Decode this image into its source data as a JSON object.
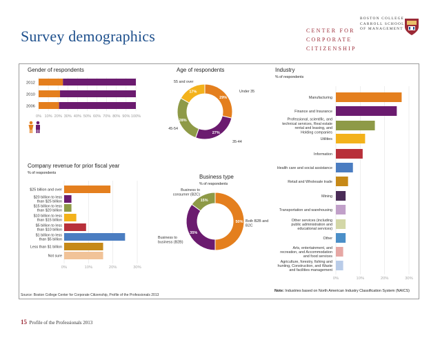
{
  "header": {
    "title": "Survey demographics",
    "brand_line1": "CENTER FOR",
    "brand_line2": "CORPORATE CITIZENSHIP",
    "bc_line1": "BOSTON COLLEGE",
    "bc_line2": "CARROLL SCHOOL",
    "bc_line3": "OF MANAGEMENT"
  },
  "footer": {
    "page_number": "15",
    "doc_title": "Profile of the Professionals 2013",
    "source": "Source: Boston College Center for Corporate Citizenship, Profile of the Professionals 2013",
    "note_label": "Note:",
    "note_text": "Industries based on North American Industry Classification System (NAICS)"
  },
  "colors": {
    "orange": "#e47f1e",
    "purple": "#6b1b6f",
    "olive": "#8e9a47",
    "gold": "#f3b21b",
    "red": "#b8303a",
    "blue": "#4b7dc1",
    "tan": "#f1c398",
    "lavender": "#c1a0c9",
    "sage": "#d3d7a7",
    "rose": "#e6a7a4",
    "lightblue": "#b9cce8",
    "accent": "#9b2a36",
    "navy": "#1d4f8c"
  },
  "chart_data": [
    {
      "type": "bar",
      "title": "Gender of respondents",
      "orientation": "horizontal-stacked",
      "categories": [
        "2012",
        "2010",
        "2006"
      ],
      "series": [
        {
          "color": "#e47f1e",
          "values": [
            25,
            22,
            21
          ]
        },
        {
          "color": "#6b1b6f",
          "values": [
            75,
            78,
            79
          ]
        }
      ],
      "ticks": [
        "0%",
        "10%",
        "20%",
        "30%",
        "40%",
        "50%",
        "60%",
        "70%",
        "80%",
        "90%",
        "100%"
      ],
      "xlim": [
        0,
        100
      ]
    },
    {
      "type": "pie",
      "title": "Age of respondents",
      "donut": true,
      "slices": [
        {
          "label": "Under 35",
          "value": 29,
          "display": "29%",
          "color": "#e47f1e"
        },
        {
          "label": "35-44",
          "value": 27,
          "display": "27%",
          "color": "#6b1b6f"
        },
        {
          "label": "45-54",
          "value": 28,
          "display": "28%",
          "color": "#8e9a47"
        },
        {
          "label": "55 and over",
          "value": 17,
          "display": "17%",
          "color": "#f3b21b"
        }
      ]
    },
    {
      "type": "bar",
      "title": "Industry",
      "subtitle": "% of respondents",
      "orientation": "horizontal",
      "categories": [
        "Manufacturing",
        "Finance and Insurance",
        "Professional, scientific, and technical services, Real estate rental and leasing, and Holding companies",
        "Utilities",
        "Information",
        "Health care and social assistance",
        "Retail and Wholesale trade",
        "Mining",
        "Transportation and warehousing",
        "Other services (including public administration and educational services)",
        "Other",
        "Arts, entertainment, and recreation, and Accommodation and food services",
        "Agriculture, forestry, fishing and hunting, Construction, and Waste and facilities management"
      ],
      "labels": [
        [
          "Manufacturing"
        ],
        [
          "Finance and Insurance"
        ],
        [
          "Professional, scientific, and",
          "technical services, Real estate",
          "rental and leasing, and",
          "Holding companies"
        ],
        [
          "Utilities"
        ],
        [
          "Information"
        ],
        [
          "Health care and social assistance"
        ],
        [
          "Retail and Wholesale trade"
        ],
        [
          "Mining"
        ],
        [
          "Transportation and warehousing"
        ],
        [
          "Other services (including",
          "public administration and",
          "educational services)"
        ],
        [
          "Other"
        ],
        [
          "Arts, entertainment, and",
          "recreation, and Accommodation",
          "and food services"
        ],
        [
          "Agriculture, forestry, fishing and",
          "hunting, Construction, and Waste",
          "and facilities management"
        ]
      ],
      "values": [
        27,
        25,
        16,
        12,
        11,
        7,
        5,
        4,
        4,
        4,
        4,
        3,
        3
      ],
      "colors": [
        "#e47f1e",
        "#6b1b6f",
        "#8e9a47",
        "#f3b21b",
        "#b8303a",
        "#4b7dc1",
        "#c68918",
        "#4a2c57",
        "#c1a0c9",
        "#d3d7a7",
        "#4b8fc8",
        "#e6a7a4",
        "#b9cce8"
      ],
      "ticks": [
        "0%",
        "10%",
        "20%",
        "30%"
      ],
      "xlim": [
        0,
        30
      ]
    },
    {
      "type": "bar",
      "title": "Company revenue for prior fiscal year",
      "subtitle": "% of respondents",
      "orientation": "horizontal",
      "categories": [
        "$25 billion and over",
        "$20 billion to less than $25 billion",
        "$15 billion to less than $20 billion",
        "$10 billion to less than $15 billion",
        "$5 billion to less than $10 billion",
        "$1 billion to less than $5 billion",
        "Less than $1 billion",
        "Not sure"
      ],
      "labels": [
        [
          "$25 billion and over"
        ],
        [
          "$20 billion to less",
          "than $25 billion"
        ],
        [
          "$15 billion to less",
          "than $20 billion"
        ],
        [
          "$10 billion to less",
          "than $15 billion"
        ],
        [
          "$5 billion to less",
          "than $10 billion"
        ],
        [
          "$1 billion to less",
          "than $5 billion"
        ],
        [
          "Less than $1 billion"
        ],
        [
          "Not sure"
        ]
      ],
      "values": [
        19,
        3,
        3,
        5,
        9,
        25,
        16,
        16
      ],
      "colors": [
        "#e47f1e",
        "#6b1b6f",
        "#8e9a47",
        "#f3b21b",
        "#b8303a",
        "#4b7dc1",
        "#c68918",
        "#f1c398"
      ],
      "ticks": [
        "0%",
        "10%",
        "20%",
        "30%"
      ],
      "xlim": [
        0,
        30
      ]
    },
    {
      "type": "pie",
      "title": "Business type",
      "subtitle": "% of respondents",
      "donut": true,
      "slices": [
        {
          "label": "Both B2B and B2C",
          "value": 50,
          "display": "50%",
          "color": "#e47f1e"
        },
        {
          "label": "Business to business (B2B)",
          "value": 35,
          "display": "35%",
          "color": "#6b1b6f"
        },
        {
          "label": "Business to consumer (B2C)",
          "value": 15,
          "display": "15%",
          "color": "#8e9a47"
        }
      ]
    }
  ]
}
